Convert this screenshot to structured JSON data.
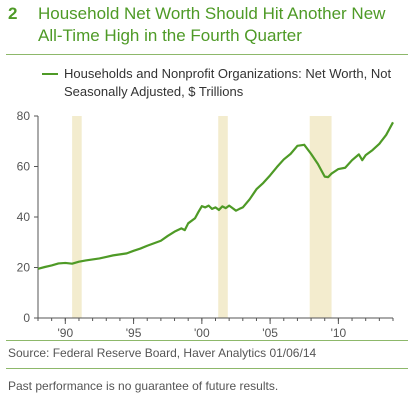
{
  "title": {
    "number": "2",
    "text": "Household Net Worth Should Hit Another New All-Time High in the Fourth Quarter"
  },
  "legend": {
    "label_part1": "Households and Nonprofit Organizations: Net Worth",
    "label_part2": ", Not Seasonally Adjusted, $ Trillions"
  },
  "footer": {
    "source": "Source: Federal Reserve Board, Haver Analytics   01/06/14",
    "disclaimer": "Past performance is no guarantee of future results."
  },
  "colors": {
    "accent": "#4e9a26",
    "recession": "#f3ecce",
    "axis": "#555555"
  },
  "chart_data": {
    "type": "line",
    "xlim": [
      1988,
      2014
    ],
    "ylim": [
      0,
      80
    ],
    "yticks": [
      0,
      20,
      40,
      60,
      80
    ],
    "xticks": [
      {
        "value": 1990,
        "label": "'90"
      },
      {
        "value": 1995,
        "label": "'95"
      },
      {
        "value": 2000,
        "label": "'00"
      },
      {
        "value": 2005,
        "label": "'05"
      },
      {
        "value": 2010,
        "label": "'10"
      }
    ],
    "recessions": [
      [
        1990.5,
        1991.2
      ],
      [
        2001.2,
        2001.9
      ],
      [
        2007.9,
        2009.5
      ]
    ],
    "series": [
      {
        "name": "Households and Nonprofit Organizations: Net Worth",
        "points": [
          [
            1988.0,
            19.5
          ],
          [
            1988.5,
            20.2
          ],
          [
            1989.0,
            20.8
          ],
          [
            1989.5,
            21.6
          ],
          [
            1990.0,
            21.8
          ],
          [
            1990.5,
            21.5
          ],
          [
            1991.0,
            22.3
          ],
          [
            1991.5,
            22.8
          ],
          [
            1992.0,
            23.2
          ],
          [
            1992.5,
            23.6
          ],
          [
            1993.0,
            24.2
          ],
          [
            1993.5,
            24.8
          ],
          [
            1994.0,
            25.2
          ],
          [
            1994.5,
            25.6
          ],
          [
            1995.0,
            26.6
          ],
          [
            1995.5,
            27.5
          ],
          [
            1996.0,
            28.6
          ],
          [
            1996.5,
            29.6
          ],
          [
            1997.0,
            30.6
          ],
          [
            1997.5,
            32.5
          ],
          [
            1998.0,
            34.2
          ],
          [
            1998.5,
            35.5
          ],
          [
            1998.75,
            34.8
          ],
          [
            1999.0,
            37.5
          ],
          [
            1999.5,
            39.5
          ],
          [
            1999.75,
            42.0
          ],
          [
            2000.0,
            44.3
          ],
          [
            2000.25,
            43.8
          ],
          [
            2000.5,
            44.5
          ],
          [
            2000.75,
            43.2
          ],
          [
            2001.0,
            43.8
          ],
          [
            2001.25,
            42.8
          ],
          [
            2001.5,
            44.2
          ],
          [
            2001.75,
            43.5
          ],
          [
            2002.0,
            44.5
          ],
          [
            2002.25,
            43.5
          ],
          [
            2002.5,
            42.5
          ],
          [
            2002.75,
            43.2
          ],
          [
            2003.0,
            43.8
          ],
          [
            2003.5,
            47.0
          ],
          [
            2004.0,
            51.0
          ],
          [
            2004.5,
            53.5
          ],
          [
            2005.0,
            56.5
          ],
          [
            2005.5,
            59.8
          ],
          [
            2006.0,
            62.8
          ],
          [
            2006.5,
            65.0
          ],
          [
            2007.0,
            68.2
          ],
          [
            2007.5,
            68.6
          ],
          [
            2008.0,
            65.0
          ],
          [
            2008.5,
            61.0
          ],
          [
            2009.0,
            56.0
          ],
          [
            2009.25,
            55.8
          ],
          [
            2009.5,
            57.2
          ],
          [
            2010.0,
            59.0
          ],
          [
            2010.5,
            59.5
          ],
          [
            2011.0,
            62.5
          ],
          [
            2011.5,
            64.8
          ],
          [
            2011.75,
            62.5
          ],
          [
            2012.0,
            64.5
          ],
          [
            2012.5,
            66.5
          ],
          [
            2013.0,
            69.0
          ],
          [
            2013.5,
            72.5
          ],
          [
            2013.75,
            75.0
          ],
          [
            2014.0,
            77.5
          ]
        ]
      }
    ]
  }
}
